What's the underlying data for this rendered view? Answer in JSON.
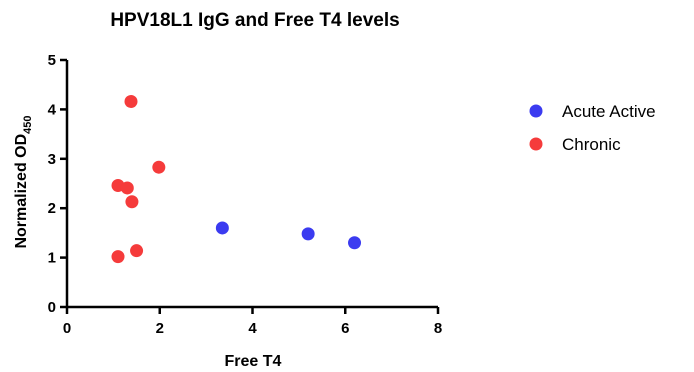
{
  "chart_data": {
    "type": "scatter",
    "title": "HPV18L1 IgG and Free T4 levels",
    "xlabel": "Free T4",
    "ylabel_main": "Normalized OD",
    "ylabel_sub": "450",
    "xlim": [
      0,
      8
    ],
    "ylim": [
      0,
      5
    ],
    "x_ticks": [
      0,
      2,
      4,
      6,
      8
    ],
    "y_ticks": [
      0,
      1,
      2,
      3,
      4,
      5
    ],
    "grid": false,
    "legend_position": "right",
    "series": [
      {
        "name": "Acute Active",
        "color": "#3b3bf0",
        "points": [
          {
            "x": 3.35,
            "y": 1.6
          },
          {
            "x": 5.2,
            "y": 1.48
          },
          {
            "x": 6.2,
            "y": 1.3
          }
        ]
      },
      {
        "name": "Chronic",
        "color": "#f53b3b",
        "points": [
          {
            "x": 1.38,
            "y": 4.16
          },
          {
            "x": 1.98,
            "y": 2.83
          },
          {
            "x": 1.1,
            "y": 2.46
          },
          {
            "x": 1.3,
            "y": 2.41
          },
          {
            "x": 1.4,
            "y": 2.13
          },
          {
            "x": 1.5,
            "y": 1.14
          },
          {
            "x": 1.1,
            "y": 1.02
          }
        ]
      }
    ]
  }
}
